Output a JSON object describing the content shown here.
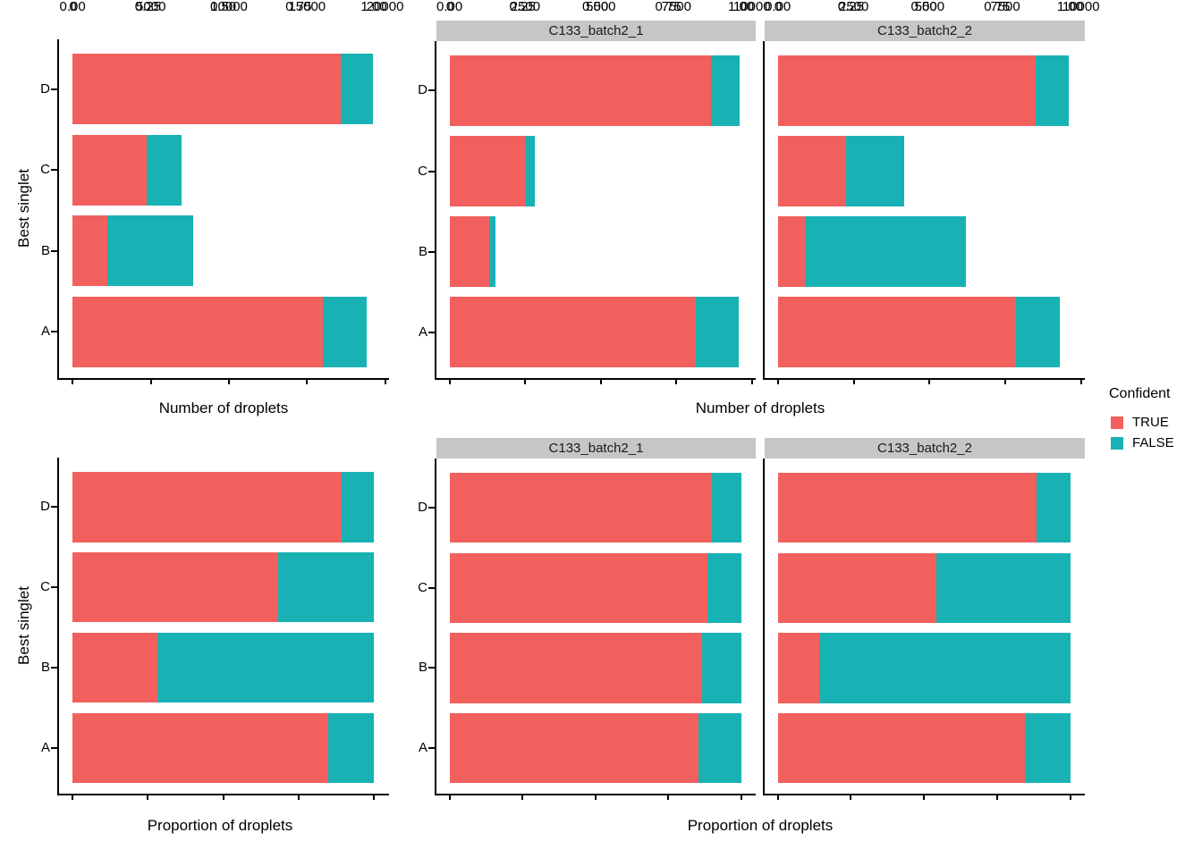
{
  "chart_data": {
    "type": "bar",
    "orientation": "horizontal",
    "stacked": true,
    "ylabel": "Best singlet",
    "categories_top_to_bottom": [
      "D",
      "C",
      "B",
      "A"
    ],
    "legend": {
      "title": "Confident",
      "position": "right",
      "items": [
        {
          "label": "TRUE",
          "color": "#F2605D"
        },
        {
          "label": "FALSE",
          "color": "#18B2B4"
        }
      ]
    },
    "facets": [
      "C133_batch2_1",
      "C133_batch2_2"
    ],
    "strip_bg": "#C6C6C6",
    "rows": [
      {
        "xlabel": "Number of droplets",
        "value_type": "count",
        "panels": [
          {
            "facet": "",
            "xlim": [
              0,
              20000
            ],
            "tick_values": [
              0,
              5000,
              10000,
              15000,
              20000
            ],
            "tick_labels": [
              "0",
              "5000",
              "10000",
              "15000",
              "20000"
            ],
            "bars": [
              {
                "category": "D",
                "true_value": 17150,
                "false_value": 2050
              },
              {
                "category": "C",
                "true_value": 4730,
                "false_value": 2220
              },
              {
                "category": "B",
                "true_value": 2180,
                "false_value": 5520
              },
              {
                "category": "A",
                "true_value": 16000,
                "false_value": 2850
              }
            ]
          },
          {
            "facet": "C133_batch2_1",
            "xlim": [
              0,
              10000
            ],
            "tick_values": [
              0,
              2500,
              5000,
              7500,
              10000
            ],
            "tick_labels": [
              "0",
              "2500",
              "5000",
              "7500",
              "10000"
            ],
            "bars": [
              {
                "category": "D",
                "true_value": 8650,
                "false_value": 950
              },
              {
                "category": "C",
                "true_value": 2480,
                "false_value": 320
              },
              {
                "category": "B",
                "true_value": 1300,
                "false_value": 200
              },
              {
                "category": "A",
                "true_value": 8150,
                "false_value": 1400
              }
            ]
          },
          {
            "facet": "C133_batch2_2",
            "xlim": [
              0,
              10000
            ],
            "tick_values": [
              0,
              2500,
              5000,
              7500,
              10000
            ],
            "tick_labels": [
              "0",
              "2500",
              "5000",
              "7500",
              "10000"
            ],
            "bars": [
              {
                "category": "D",
                "true_value": 8500,
                "false_value": 1100
              },
              {
                "category": "C",
                "true_value": 2250,
                "false_value": 1900
              },
              {
                "category": "B",
                "true_value": 880,
                "false_value": 5320
              },
              {
                "category": "A",
                "true_value": 7850,
                "false_value": 1450
              }
            ]
          }
        ]
      },
      {
        "xlabel": "Proportion of droplets",
        "value_type": "proportion",
        "panels": [
          {
            "facet": "",
            "xlim": [
              0,
              1
            ],
            "tick_values": [
              0,
              0.25,
              0.5,
              0.75,
              1
            ],
            "tick_labels": [
              "0.00",
              "0.25",
              "0.50",
              "0.75",
              "1.00"
            ],
            "bars": [
              {
                "category": "D",
                "true_value": 0.893,
                "false_value": 0.107
              },
              {
                "category": "C",
                "true_value": 0.681,
                "false_value": 0.319
              },
              {
                "category": "B",
                "true_value": 0.283,
                "false_value": 0.717
              },
              {
                "category": "A",
                "true_value": 0.849,
                "false_value": 0.151
              }
            ]
          },
          {
            "facet": "C133_batch2_1",
            "xlim": [
              0,
              1
            ],
            "tick_values": [
              0,
              0.25,
              0.5,
              0.75,
              1
            ],
            "tick_labels": [
              "0.00",
              "0.25",
              "0.50",
              "0.75",
              "1.00"
            ],
            "bars": [
              {
                "category": "D",
                "true_value": 0.901,
                "false_value": 0.099
              },
              {
                "category": "C",
                "true_value": 0.886,
                "false_value": 0.114
              },
              {
                "category": "B",
                "true_value": 0.867,
                "false_value": 0.133
              },
              {
                "category": "A",
                "true_value": 0.853,
                "false_value": 0.147
              }
            ]
          },
          {
            "facet": "C133_batch2_2",
            "xlim": [
              0,
              1
            ],
            "tick_values": [
              0,
              0.25,
              0.5,
              0.75,
              1
            ],
            "tick_labels": [
              "0.00",
              "0.25",
              "0.50",
              "0.75",
              "1.00"
            ],
            "bars": [
              {
                "category": "D",
                "true_value": 0.885,
                "false_value": 0.115
              },
              {
                "category": "C",
                "true_value": 0.542,
                "false_value": 0.458
              },
              {
                "category": "B",
                "true_value": 0.142,
                "false_value": 0.858
              },
              {
                "category": "A",
                "true_value": 0.844,
                "false_value": 0.156
              }
            ]
          }
        ]
      }
    ]
  }
}
